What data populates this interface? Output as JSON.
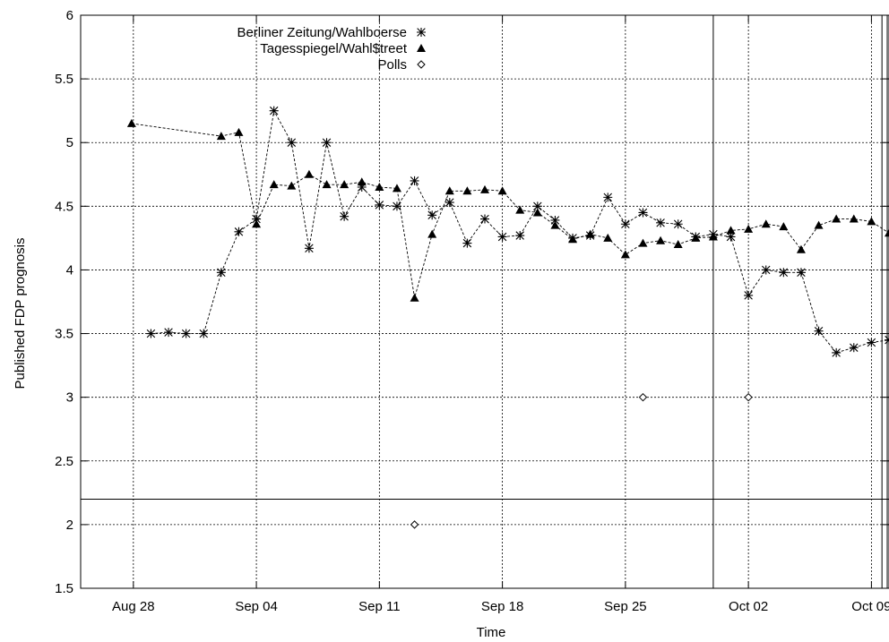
{
  "chart_data": {
    "type": "scatter",
    "xlabel": "Time",
    "ylabel": "Published FDP prognosis",
    "x_ticks": [
      "Aug 28",
      "Sep 04",
      "Sep 11",
      "Sep 18",
      "Sep 25",
      "Oct 02",
      "Oct 09"
    ],
    "x_tick_dates": [
      "2002-08-28",
      "2002-09-04",
      "2002-09-11",
      "2002-09-18",
      "2002-09-25",
      "2002-10-02",
      "2002-10-09"
    ],
    "xlim": [
      "2002-08-25",
      "2002-10-10"
    ],
    "y_ticks": [
      "1.5",
      "2",
      "2.5",
      "3",
      "3.5",
      "4",
      "4.5",
      "5",
      "5.5",
      "6"
    ],
    "ylim": [
      1.5,
      6
    ],
    "grid": true,
    "legend_position": "top-center",
    "reference_lines": {
      "vertical_dates": [
        "2002-09-30",
        "2002-10-09.6",
        "2002-10-09.9"
      ],
      "horizontal_values": [
        2.2
      ]
    },
    "series": [
      {
        "name": "Berliner Zeitung/Wahlboerse",
        "marker": "asterisk",
        "connected": true,
        "points": [
          [
            "2002-08-29",
            3.5
          ],
          [
            "2002-08-30",
            3.51
          ],
          [
            "2002-08-31",
            3.5
          ],
          [
            "2002-09-01",
            3.5
          ],
          [
            "2002-09-02",
            3.98
          ],
          [
            "2002-09-03",
            4.3
          ],
          [
            "2002-09-04",
            4.4
          ],
          [
            "2002-09-05",
            5.25
          ],
          [
            "2002-09-06",
            5.0
          ],
          [
            "2002-09-07",
            4.17
          ],
          [
            "2002-09-08",
            5.0
          ],
          [
            "2002-09-09",
            4.42
          ],
          [
            "2002-09-10",
            4.65
          ],
          [
            "2002-09-11",
            4.51
          ],
          [
            "2002-09-12",
            4.5
          ],
          [
            "2002-09-13",
            4.7
          ],
          [
            "2002-09-14",
            4.43
          ],
          [
            "2002-09-15",
            4.53
          ],
          [
            "2002-09-16",
            4.21
          ],
          [
            "2002-09-17",
            4.4
          ],
          [
            "2002-09-18",
            4.26
          ],
          [
            "2002-09-19",
            4.27
          ],
          [
            "2002-09-20",
            4.5
          ],
          [
            "2002-09-21",
            4.39
          ],
          [
            "2002-09-22",
            4.25
          ],
          [
            "2002-09-23",
            4.27
          ],
          [
            "2002-09-24",
            4.57
          ],
          [
            "2002-09-25",
            4.36
          ],
          [
            "2002-09-26",
            4.45
          ],
          [
            "2002-09-27",
            4.37
          ],
          [
            "2002-09-28",
            4.36
          ],
          [
            "2002-09-29",
            4.26
          ],
          [
            "2002-09-30",
            4.28
          ],
          [
            "2002-10-01",
            4.26
          ],
          [
            "2002-10-02",
            3.8
          ],
          [
            "2002-10-03",
            4.0
          ],
          [
            "2002-10-04",
            3.98
          ],
          [
            "2002-10-05",
            3.98
          ],
          [
            "2002-10-06",
            3.52
          ],
          [
            "2002-10-07",
            3.35
          ],
          [
            "2002-10-08",
            3.39
          ],
          [
            "2002-10-09",
            3.43
          ],
          [
            "2002-10-10",
            3.45
          ]
        ]
      },
      {
        "name": "Tagesspiegel/Wahl$treet",
        "marker": "filled-triangle",
        "connected": true,
        "points": [
          [
            "2002-08-27.9",
            5.15
          ],
          [
            "2002-09-02",
            5.05
          ],
          [
            "2002-09-03",
            5.08
          ],
          [
            "2002-09-04",
            4.36
          ],
          [
            "2002-09-05",
            4.67
          ],
          [
            "2002-09-06",
            4.66
          ],
          [
            "2002-09-07",
            4.75
          ],
          [
            "2002-09-08",
            4.67
          ],
          [
            "2002-09-09",
            4.67
          ],
          [
            "2002-09-10",
            4.69
          ],
          [
            "2002-09-11",
            4.65
          ],
          [
            "2002-09-12",
            4.64
          ],
          [
            "2002-09-13",
            3.78
          ],
          [
            "2002-09-14",
            4.28
          ],
          [
            "2002-09-15",
            4.62
          ],
          [
            "2002-09-16",
            4.62
          ],
          [
            "2002-09-17",
            4.63
          ],
          [
            "2002-09-18",
            4.62
          ],
          [
            "2002-09-19",
            4.47
          ],
          [
            "2002-09-20",
            4.45
          ],
          [
            "2002-09-21",
            4.35
          ],
          [
            "2002-09-22",
            4.24
          ],
          [
            "2002-09-23",
            4.28
          ],
          [
            "2002-09-24",
            4.25
          ],
          [
            "2002-09-25",
            4.12
          ],
          [
            "2002-09-26",
            4.21
          ],
          [
            "2002-09-27",
            4.23
          ],
          [
            "2002-09-28",
            4.2
          ],
          [
            "2002-09-29",
            4.25
          ],
          [
            "2002-09-30",
            4.26
          ],
          [
            "2002-10-01",
            4.31
          ],
          [
            "2002-10-02",
            4.32
          ],
          [
            "2002-10-03",
            4.36
          ],
          [
            "2002-10-04",
            4.34
          ],
          [
            "2002-10-05",
            4.16
          ],
          [
            "2002-10-06",
            4.35
          ],
          [
            "2002-10-07",
            4.4
          ],
          [
            "2002-10-08",
            4.4
          ],
          [
            "2002-10-09",
            4.38
          ],
          [
            "2002-10-10",
            4.29
          ]
        ]
      },
      {
        "name": "Polls",
        "marker": "open-diamond",
        "connected": false,
        "points": [
          [
            "2002-09-13",
            2.0
          ],
          [
            "2002-09-26",
            3.0
          ],
          [
            "2002-10-02",
            3.0
          ]
        ]
      }
    ]
  }
}
